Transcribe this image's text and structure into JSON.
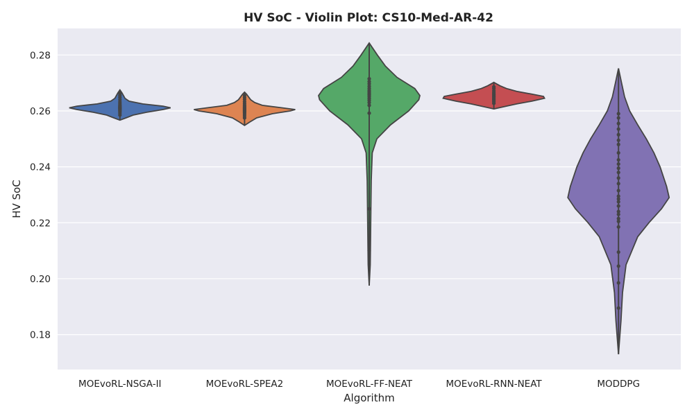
{
  "chart_data": {
    "type": "violin",
    "title": "HV SoC - Violin Plot: CS10-Med-AR-42",
    "xlabel": "Algorithm",
    "ylabel": "HV SoC",
    "ylim": [
      0.1675,
      0.2895
    ],
    "yticks": [
      0.18,
      0.2,
      0.22,
      0.24,
      0.26,
      0.28
    ],
    "ytick_labels": [
      "0.18",
      "0.20",
      "0.22",
      "0.24",
      "0.26",
      "0.28"
    ],
    "grid": true,
    "background": "#EAEAF2",
    "categories": [
      "MOEvoRL-NSGA-II",
      "MOEvoRL-SPEA2",
      "MOEvoRL-FF-NEAT",
      "MOEvoRL-RNN-NEAT",
      "MODDPG"
    ],
    "series": [
      {
        "color": "#4C72B0",
        "values": [
          0.2585,
          0.2592,
          0.2597,
          0.2601,
          0.2604,
          0.2607,
          0.2609,
          0.2611,
          0.2613,
          0.2615,
          0.2618,
          0.2621,
          0.2626,
          0.2632,
          0.264,
          0.2648,
          0.2655,
          0.2662
        ],
        "density": [
          [
            0.2567,
            0.0
          ],
          [
            0.2575,
            0.12
          ],
          [
            0.2585,
            0.26
          ],
          [
            0.2595,
            0.52
          ],
          [
            0.2605,
            0.85
          ],
          [
            0.2611,
            1.0
          ],
          [
            0.2617,
            0.85
          ],
          [
            0.2625,
            0.45
          ],
          [
            0.2635,
            0.18
          ],
          [
            0.2645,
            0.1
          ],
          [
            0.2655,
            0.07
          ],
          [
            0.2665,
            0.04
          ],
          [
            0.2675,
            0.0
          ]
        ]
      },
      {
        "color": "#DD8452",
        "values": [
          0.2575,
          0.2582,
          0.2588,
          0.2593,
          0.2597,
          0.26,
          0.2603,
          0.2606,
          0.2609,
          0.2612,
          0.2616,
          0.262,
          0.2626,
          0.2633,
          0.2641,
          0.2648,
          0.2655
        ],
        "density": [
          [
            0.2548,
            0.0
          ],
          [
            0.256,
            0.1
          ],
          [
            0.2575,
            0.24
          ],
          [
            0.259,
            0.55
          ],
          [
            0.26,
            0.9
          ],
          [
            0.2605,
            1.0
          ],
          [
            0.2612,
            0.7
          ],
          [
            0.262,
            0.35
          ],
          [
            0.263,
            0.2
          ],
          [
            0.264,
            0.12
          ],
          [
            0.265,
            0.08
          ],
          [
            0.266,
            0.04
          ],
          [
            0.2667,
            0.0
          ]
        ]
      },
      {
        "color": "#55A868",
        "values": [
          0.21,
          0.225,
          0.2592,
          0.262,
          0.263,
          0.2638,
          0.2645,
          0.2652,
          0.2658,
          0.2663,
          0.2668,
          0.2673,
          0.268,
          0.2688,
          0.2697,
          0.2705,
          0.2715
        ],
        "density": [
          [
            0.1975,
            0.0
          ],
          [
            0.205,
            0.02
          ],
          [
            0.22,
            0.03
          ],
          [
            0.235,
            0.04
          ],
          [
            0.245,
            0.06
          ],
          [
            0.25,
            0.15
          ],
          [
            0.255,
            0.42
          ],
          [
            0.26,
            0.78
          ],
          [
            0.264,
            0.98
          ],
          [
            0.2655,
            1.0
          ],
          [
            0.268,
            0.9
          ],
          [
            0.272,
            0.55
          ],
          [
            0.276,
            0.32
          ],
          [
            0.28,
            0.16
          ],
          [
            0.2843,
            0.0
          ]
        ]
      },
      {
        "color": "#C44E52",
        "values": [
          0.2627,
          0.2633,
          0.2638,
          0.2642,
          0.2646,
          0.265,
          0.2654,
          0.2658,
          0.2662,
          0.2666,
          0.2672,
          0.268,
          0.2686
        ],
        "density": [
          [
            0.2607,
            0.0
          ],
          [
            0.2615,
            0.2
          ],
          [
            0.2625,
            0.45
          ],
          [
            0.2635,
            0.75
          ],
          [
            0.2645,
            1.0
          ],
          [
            0.2652,
            0.98
          ],
          [
            0.266,
            0.75
          ],
          [
            0.267,
            0.45
          ],
          [
            0.268,
            0.25
          ],
          [
            0.269,
            0.12
          ],
          [
            0.2702,
            0.0
          ]
        ]
      },
      {
        "color": "#8172B3",
        "values": [
          0.1895,
          0.1985,
          0.2045,
          0.2095,
          0.2185,
          0.2205,
          0.2215,
          0.223,
          0.224,
          0.226,
          0.2275,
          0.2285,
          0.2295,
          0.2315,
          0.234,
          0.236,
          0.238,
          0.2395,
          0.241,
          0.2425,
          0.245,
          0.248,
          0.2495,
          0.2515,
          0.2535,
          0.2555,
          0.2575,
          0.259
        ],
        "density": [
          [
            0.173,
            0.0
          ],
          [
            0.185,
            0.05
          ],
          [
            0.195,
            0.08
          ],
          [
            0.205,
            0.15
          ],
          [
            0.215,
            0.38
          ],
          [
            0.22,
            0.6
          ],
          [
            0.225,
            0.85
          ],
          [
            0.229,
            1.0
          ],
          [
            0.233,
            0.95
          ],
          [
            0.24,
            0.82
          ],
          [
            0.245,
            0.7
          ],
          [
            0.25,
            0.55
          ],
          [
            0.255,
            0.38
          ],
          [
            0.26,
            0.22
          ],
          [
            0.265,
            0.12
          ],
          [
            0.27,
            0.06
          ],
          [
            0.2752,
            0.0
          ]
        ]
      }
    ]
  }
}
